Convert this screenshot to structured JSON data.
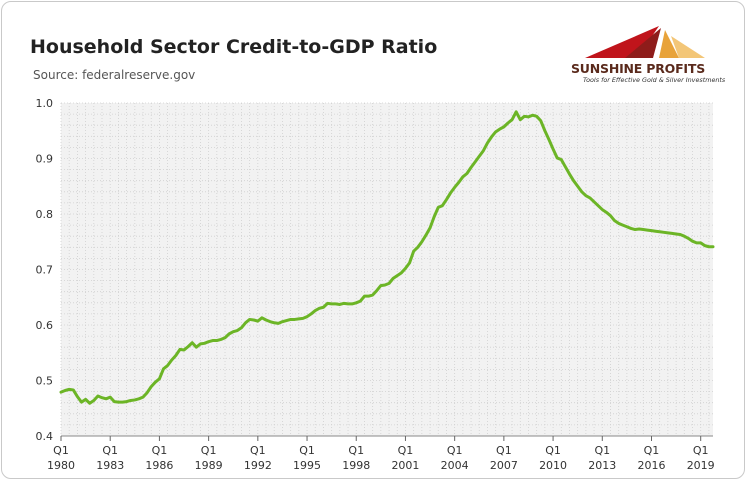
{
  "header": {
    "title": "Household Sector Credit-to-GDP Ratio",
    "source": "Source: federalreserve.gov"
  },
  "logo": {
    "name": "SUNSHINE PROFITS",
    "tagline": "Tools for Effective Gold & Silver Investments"
  },
  "colors": {
    "line": "#6cb526",
    "grid": "#d0d0d0",
    "plot_bg": "#f2f2f2",
    "logo_red": "#c0141b",
    "logo_orange": "#e8a33a"
  },
  "chart_data": {
    "type": "line",
    "title": "Household Sector Credit-to-GDP Ratio",
    "xlabel": "",
    "ylabel": "",
    "xlim": [
      1980.0,
      2019.75
    ],
    "ylim": [
      0.4,
      1.0
    ],
    "yticks": [
      "0.4",
      "0.5",
      "0.6",
      "0.7",
      "0.8",
      "0.9",
      "1.0"
    ],
    "xticks": [
      {
        "quarter": "Q1",
        "year": "1980"
      },
      {
        "quarter": "Q1",
        "year": "1983"
      },
      {
        "quarter": "Q1",
        "year": "1986"
      },
      {
        "quarter": "Q1",
        "year": "1989"
      },
      {
        "quarter": "Q1",
        "year": "1992"
      },
      {
        "quarter": "Q1",
        "year": "1995"
      },
      {
        "quarter": "Q1",
        "year": "1998"
      },
      {
        "quarter": "Q1",
        "year": "2001"
      },
      {
        "quarter": "Q1",
        "year": "2004"
      },
      {
        "quarter": "Q1",
        "year": "2007"
      },
      {
        "quarter": "Q1",
        "year": "2010"
      },
      {
        "quarter": "Q1",
        "year": "2013"
      },
      {
        "quarter": "Q1",
        "year": "2016"
      },
      {
        "quarter": "Q1",
        "year": "2019"
      }
    ],
    "grid": true,
    "legend": "none",
    "series": [
      {
        "x": [
          1980.0,
          1980.25,
          1980.5,
          1980.75,
          1981.0,
          1981.25,
          1981.5,
          1981.75,
          1982.0,
          1982.25,
          1982.5,
          1982.75,
          1983.0,
          1983.25,
          1983.5,
          1983.75,
          1984.0,
          1984.25,
          1984.5,
          1984.75,
          1985.0,
          1985.25,
          1985.5,
          1985.75,
          1986.0,
          1986.25,
          1986.5,
          1986.75,
          1987.0,
          1987.25,
          1987.5,
          1987.75,
          1988.0,
          1988.25,
          1988.5,
          1988.75,
          1989.0,
          1989.25,
          1989.5,
          1989.75,
          1990.0,
          1990.25,
          1990.5,
          1990.75,
          1991.0,
          1991.25,
          1991.5,
          1991.75,
          1992.0,
          1992.25,
          1992.5,
          1992.75,
          1993.0,
          1993.25,
          1993.5,
          1993.75,
          1994.0,
          1994.25,
          1994.5,
          1994.75,
          1995.0,
          1995.25,
          1995.5,
          1995.75,
          1996.0,
          1996.25,
          1996.5,
          1996.75,
          1997.0,
          1997.25,
          1997.5,
          1997.75,
          1998.0,
          1998.25,
          1998.5,
          1998.75,
          1999.0,
          1999.25,
          1999.5,
          1999.75,
          2000.0,
          2000.25,
          2000.5,
          2000.75,
          2001.0,
          2001.25,
          2001.5,
          2001.75,
          2002.0,
          2002.25,
          2002.5,
          2002.75,
          2003.0,
          2003.25,
          2003.5,
          2003.75,
          2004.0,
          2004.25,
          2004.5,
          2004.75,
          2005.0,
          2005.25,
          2005.5,
          2005.75,
          2006.0,
          2006.25,
          2006.5,
          2006.75,
          2007.0,
          2007.25,
          2007.5,
          2007.75,
          2008.0,
          2008.25,
          2008.5,
          2008.75,
          2009.0,
          2009.25,
          2009.5,
          2009.75,
          2010.0,
          2010.25,
          2010.5,
          2010.75,
          2011.0,
          2011.25,
          2011.5,
          2011.75,
          2012.0,
          2012.25,
          2012.5,
          2012.75,
          2013.0,
          2013.25,
          2013.5,
          2013.75,
          2014.0,
          2014.25,
          2014.5,
          2014.75,
          2015.0,
          2015.25,
          2015.5,
          2015.75,
          2016.0,
          2016.25,
          2016.5,
          2016.75,
          2017.0,
          2017.25,
          2017.5,
          2017.75,
          2018.0,
          2018.25,
          2018.5,
          2018.75,
          2019.0,
          2019.25,
          2019.5,
          2019.75
        ],
        "values": [
          0.479,
          0.482,
          0.484,
          0.483,
          0.471,
          0.461,
          0.466,
          0.459,
          0.464,
          0.472,
          0.469,
          0.467,
          0.47,
          0.462,
          0.461,
          0.461,
          0.462,
          0.464,
          0.465,
          0.467,
          0.47,
          0.478,
          0.489,
          0.497,
          0.503,
          0.521,
          0.527,
          0.537,
          0.545,
          0.556,
          0.555,
          0.561,
          0.568,
          0.56,
          0.566,
          0.567,
          0.57,
          0.572,
          0.572,
          0.574,
          0.577,
          0.584,
          0.588,
          0.59,
          0.595,
          0.604,
          0.61,
          0.609,
          0.607,
          0.613,
          0.609,
          0.606,
          0.604,
          0.603,
          0.606,
          0.608,
          0.61,
          0.61,
          0.611,
          0.612,
          0.615,
          0.62,
          0.626,
          0.63,
          0.632,
          0.639,
          0.638,
          0.638,
          0.637,
          0.639,
          0.638,
          0.638,
          0.64,
          0.643,
          0.652,
          0.652,
          0.654,
          0.662,
          0.671,
          0.672,
          0.675,
          0.684,
          0.689,
          0.694,
          0.702,
          0.712,
          0.733,
          0.74,
          0.75,
          0.762,
          0.775,
          0.795,
          0.812,
          0.815,
          0.826,
          0.838,
          0.848,
          0.857,
          0.867,
          0.873,
          0.884,
          0.894,
          0.904,
          0.914,
          0.928,
          0.939,
          0.948,
          0.953,
          0.957,
          0.964,
          0.97,
          0.984,
          0.97,
          0.976,
          0.975,
          0.978,
          0.976,
          0.968,
          0.95,
          0.934,
          0.917,
          0.901,
          0.898,
          0.885,
          0.872,
          0.86,
          0.85,
          0.84,
          0.833,
          0.829,
          0.822,
          0.815,
          0.808,
          0.803,
          0.797,
          0.788,
          0.783,
          0.78,
          0.777,
          0.774,
          0.772,
          0.773,
          0.772,
          0.771,
          0.77,
          0.769,
          0.768,
          0.767,
          0.766,
          0.765,
          0.764,
          0.763,
          0.76,
          0.756,
          0.751,
          0.748,
          0.748,
          0.743,
          0.741,
          0.741
        ]
      }
    ]
  }
}
